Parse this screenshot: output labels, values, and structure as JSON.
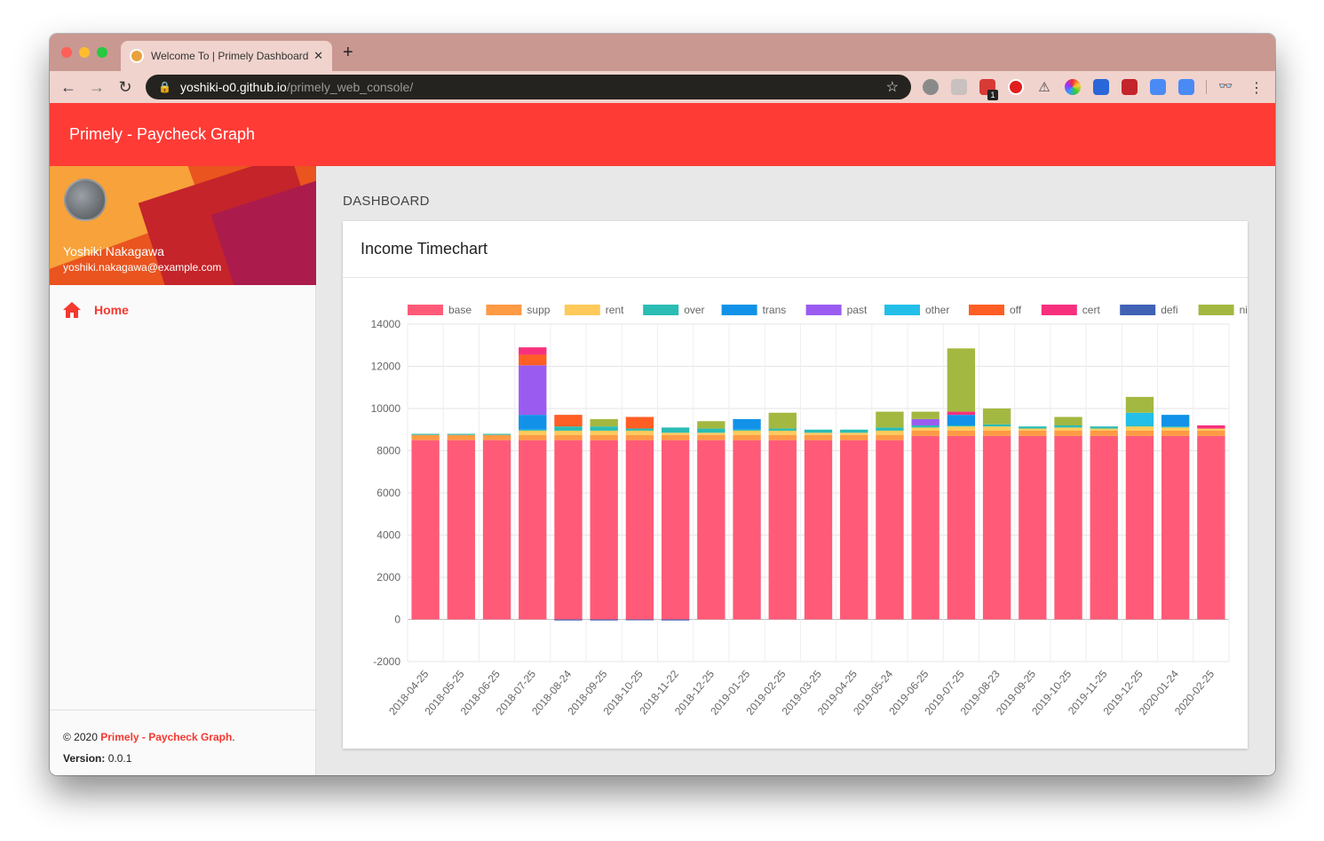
{
  "browser": {
    "tab_title": "Welcome To | Primely Dashboard",
    "url_host": "yoshiki-o0.github.io",
    "url_path": "/primely_web_console/",
    "extension_badge": "1"
  },
  "app": {
    "title": "Primely - Paycheck Graph",
    "accent": "#ff3b36"
  },
  "user": {
    "name": "Yoshiki Nakagawa",
    "email": "yoshiki.nakagawa@example.com"
  },
  "nav": {
    "home_label": "Home"
  },
  "footer": {
    "copyright": "© 2020",
    "brand": "Primely - Paycheck Graph",
    "period": ".",
    "version_label": "Version:",
    "version_value": "0.0.1"
  },
  "page": {
    "breadcrumb": "DASHBOARD",
    "card_title": "Income Timechart"
  },
  "chart_data": {
    "type": "bar",
    "stacked": true,
    "title": "Income Timechart",
    "ylim": [
      -2000,
      14000
    ],
    "yticks": [
      14000,
      12000,
      10000,
      8000,
      6000,
      4000,
      2000,
      0,
      -2000
    ],
    "categories": [
      "2018-04-25",
      "2018-05-25",
      "2018-06-25",
      "2018-07-25",
      "2018-08-24",
      "2018-09-25",
      "2018-10-25",
      "2018-11-22",
      "2018-12-25",
      "2019-01-25",
      "2019-02-25",
      "2019-03-25",
      "2019-04-25",
      "2019-05-24",
      "2019-06-25",
      "2019-07-25",
      "2019-08-23",
      "2019-09-25",
      "2019-10-25",
      "2019-11-25",
      "2019-12-25",
      "2020-01-24",
      "2020-02-25"
    ],
    "series": [
      {
        "name": "base",
        "color": "#ff5b78",
        "values": [
          8500,
          8500,
          8500,
          8500,
          8500,
          8500,
          8500,
          8500,
          8500,
          8500,
          8500,
          8500,
          8500,
          8500,
          8700,
          8700,
          8700,
          8700,
          8700,
          8700,
          8700,
          8700,
          8700
        ]
      },
      {
        "name": "supp",
        "color": "#ff9a45",
        "values": [
          250,
          250,
          250,
          250,
          250,
          250,
          250,
          250,
          250,
          250,
          250,
          250,
          250,
          250,
          250,
          250,
          250,
          250,
          250,
          250,
          250,
          250,
          250
        ]
      },
      {
        "name": "rent",
        "color": "#ffca5a",
        "values": [
          0,
          0,
          0,
          200,
          200,
          200,
          200,
          100,
          100,
          200,
          200,
          100,
          100,
          200,
          150,
          200,
          200,
          100,
          150,
          100,
          200,
          150,
          100
        ]
      },
      {
        "name": "over",
        "color": "#2bbcb4",
        "values": [
          50,
          50,
          50,
          50,
          200,
          200,
          100,
          250,
          200,
          50,
          100,
          150,
          150,
          150,
          100,
          50,
          100,
          100,
          100,
          100,
          50,
          50,
          0
        ]
      },
      {
        "name": "trans",
        "color": "#1192e8",
        "values": [
          0,
          0,
          0,
          700,
          0,
          0,
          0,
          0,
          0,
          500,
          0,
          0,
          0,
          0,
          0,
          500,
          0,
          0,
          0,
          0,
          0,
          550,
          0
        ]
      },
      {
        "name": "past",
        "color": "#9a5cf0",
        "values": [
          0,
          0,
          0,
          2350,
          0,
          0,
          0,
          0,
          0,
          0,
          0,
          0,
          0,
          0,
          300,
          0,
          0,
          0,
          0,
          0,
          0,
          0,
          0
        ]
      },
      {
        "name": "other",
        "color": "#23bfe8",
        "values": [
          0,
          0,
          0,
          0,
          0,
          0,
          0,
          0,
          0,
          0,
          0,
          0,
          0,
          0,
          0,
          0,
          0,
          0,
          0,
          0,
          600,
          0,
          0
        ]
      },
      {
        "name": "off",
        "color": "#ff5e24",
        "values": [
          0,
          0,
          0,
          500,
          550,
          0,
          550,
          0,
          0,
          0,
          0,
          0,
          0,
          0,
          0,
          0,
          0,
          0,
          0,
          0,
          0,
          0,
          0
        ]
      },
      {
        "name": "cert",
        "color": "#f7307e",
        "values": [
          0,
          0,
          0,
          350,
          0,
          0,
          0,
          0,
          0,
          0,
          0,
          0,
          0,
          0,
          0,
          150,
          0,
          0,
          0,
          0,
          0,
          0,
          150
        ]
      },
      {
        "name": "defi",
        "color": "#4061b4",
        "values": [
          0,
          0,
          0,
          0,
          -50,
          -50,
          -20,
          -50,
          0,
          0,
          0,
          0,
          0,
          0,
          0,
          0,
          0,
          0,
          0,
          0,
          0,
          0,
          0
        ]
      },
      {
        "name": "night",
        "color": "#a3b841",
        "values": [
          0,
          0,
          0,
          0,
          0,
          350,
          0,
          0,
          350,
          0,
          750,
          0,
          0,
          750,
          350,
          3000,
          750,
          0,
          400,
          0,
          750,
          0,
          0
        ]
      }
    ]
  }
}
